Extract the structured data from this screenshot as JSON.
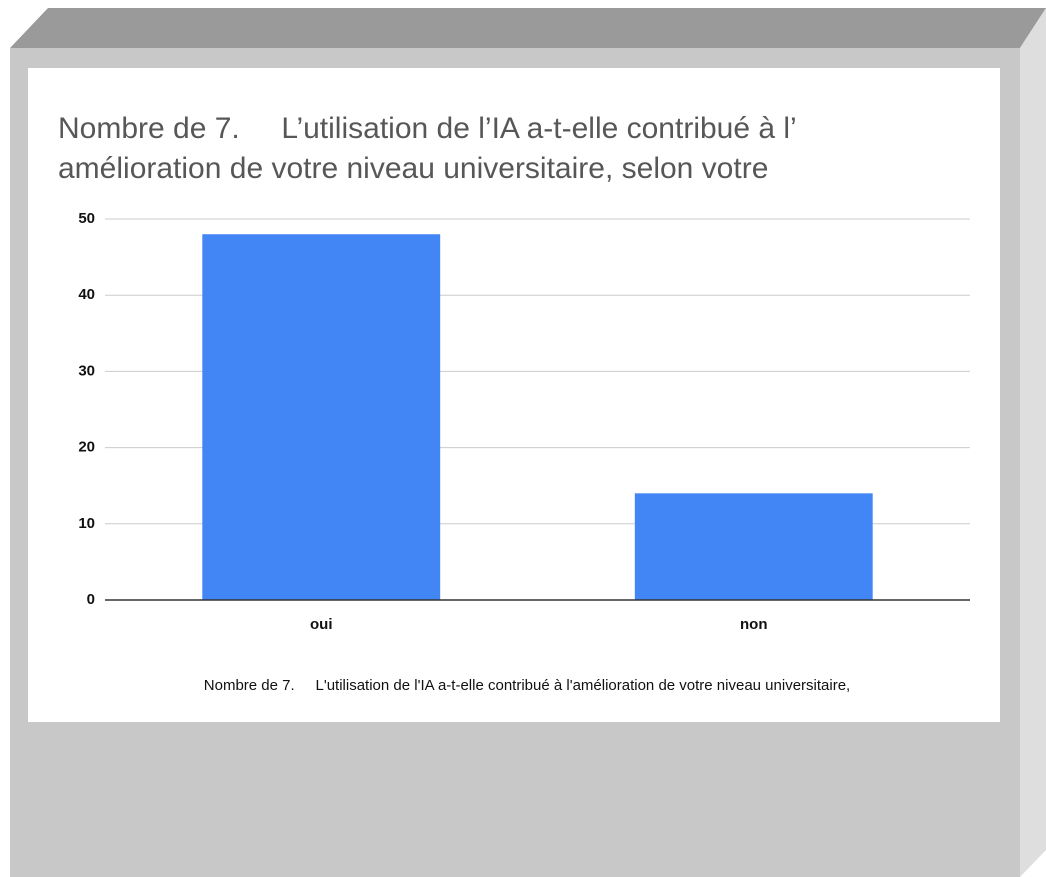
{
  "chart_data": {
    "type": "bar",
    "title_lines": [
      "Nombre de 7.     L’utilisation de l’IA a-t-elle contribué à l’",
      "amélioration de votre niveau universitaire, selon votre"
    ],
    "x_label": "Nombre de 7.     L'utilisation de l'IA a-t-elle contribué à l'amélioration de votre niveau universitaire,",
    "categories": [
      "oui",
      "non"
    ],
    "values": [
      48,
      14
    ],
    "color": "#4285f4",
    "ylim": [
      0,
      50
    ],
    "yticks": [
      0,
      10,
      20,
      30,
      40,
      50
    ],
    "grid": true
  }
}
